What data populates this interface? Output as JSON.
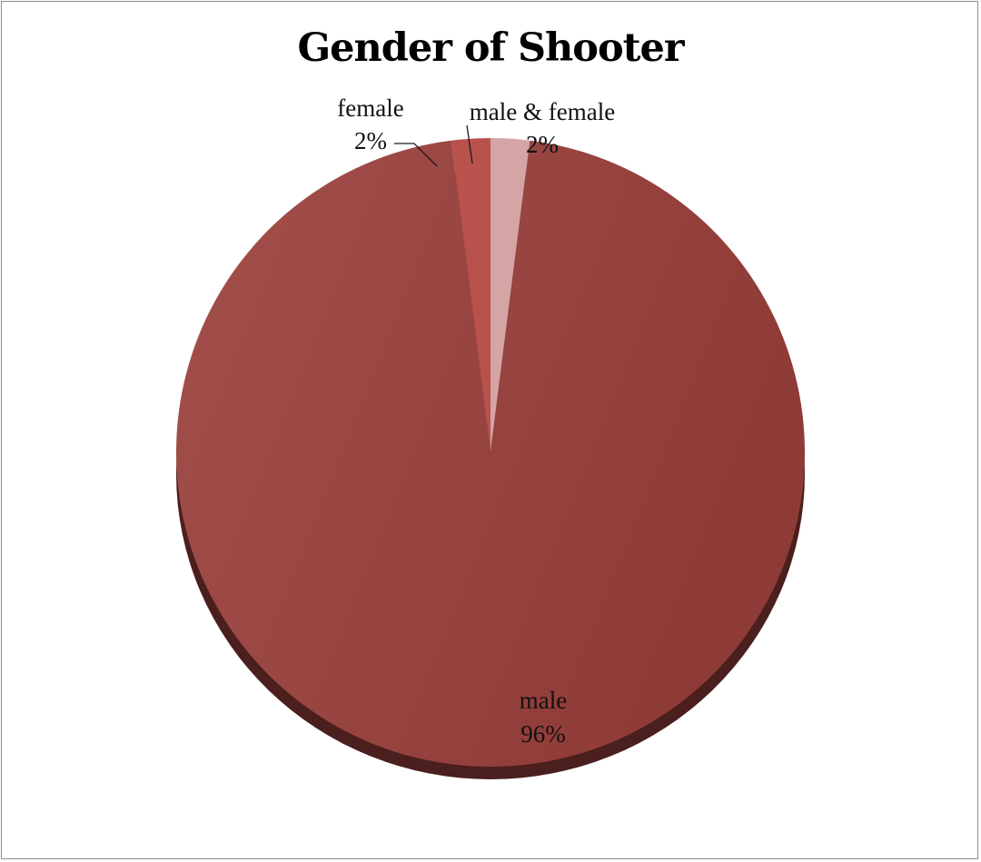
{
  "chart_data": {
    "type": "pie",
    "title": "Gender of Shooter",
    "slices": [
      {
        "label": "male & female",
        "value": 2,
        "percent_label": "2%",
        "color": "#d5a5a5"
      },
      {
        "label": "male",
        "value": 96,
        "percent_label": "96%",
        "color": "#9a4642"
      },
      {
        "label": "female",
        "value": 2,
        "percent_label": "2%",
        "color": "#b9524d"
      }
    ],
    "start_angle": "12 o'clock",
    "direction": "clockwise",
    "legend": "none",
    "style": "3d-tilted"
  }
}
